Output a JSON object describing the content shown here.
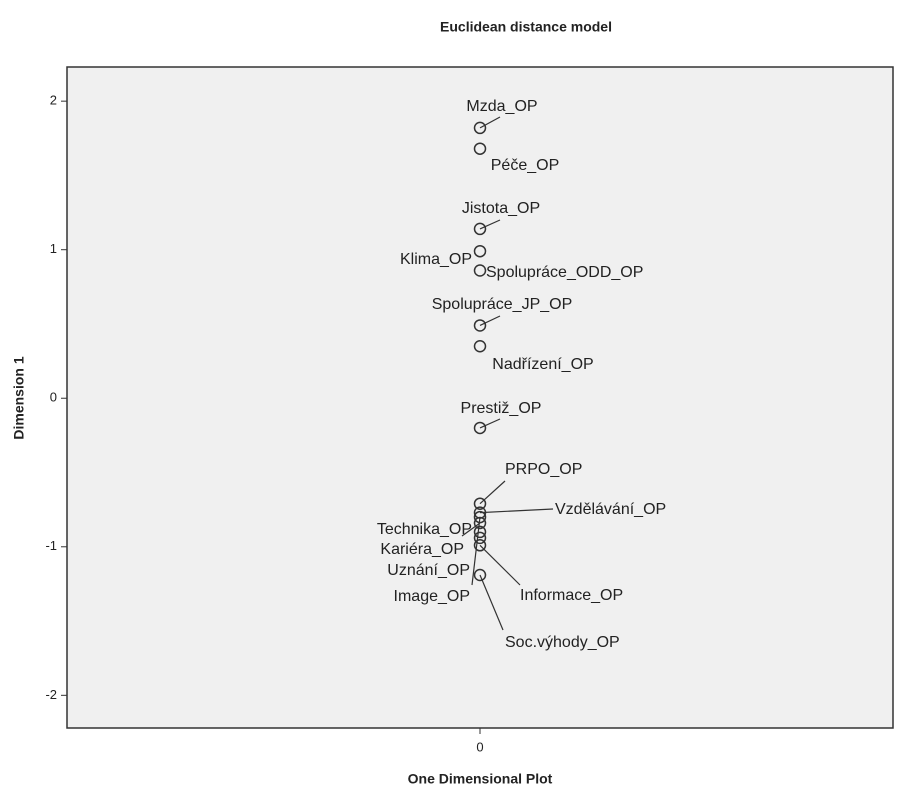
{
  "chart_data": {
    "type": "scatter",
    "title": "Euclidean distance model",
    "xlabel": "One Dimensional Plot",
    "ylabel": "Dimension 1",
    "xlim": [
      -1,
      1
    ],
    "xticks": [
      0
    ],
    "ylim": [
      -2.22,
      2.23
    ],
    "yticks": [
      -2,
      -1,
      0,
      1,
      2
    ],
    "color": "#333333",
    "points": [
      {
        "label": "Mzda_OP",
        "x": 0,
        "y": 1.82
      },
      {
        "label": "Péče_OP",
        "x": 0,
        "y": 1.68
      },
      {
        "label": "Jistota_OP",
        "x": 0,
        "y": 1.14
      },
      {
        "label": "Klima_OP",
        "x": 0,
        "y": 0.99
      },
      {
        "label": "Spolupráce_ODD_OP",
        "x": 0,
        "y": 0.86
      },
      {
        "label": "Spolupráce_JP_OP",
        "x": 0,
        "y": 0.49
      },
      {
        "label": "Nadřízení_OP",
        "x": 0,
        "y": 0.35
      },
      {
        "label": "Prestiž_OP",
        "x": 0,
        "y": -0.2
      },
      {
        "label": "PRPO_OP",
        "x": 0,
        "y": -0.71
      },
      {
        "label": "Vzdělávání_OP",
        "x": 0,
        "y": -0.77
      },
      {
        "label": "Technika_OP",
        "x": 0,
        "y": -0.84
      },
      {
        "label": "Kariéra_OP",
        "x": 0,
        "y": -0.94
      },
      {
        "label": "Uznání_OP",
        "x": 0,
        "y": -0.9
      },
      {
        "label": "Image_OP",
        "x": 0,
        "y": -0.8
      },
      {
        "label": "Informace_OP",
        "x": 0,
        "y": -0.99
      },
      {
        "label": "Soc.výhody_OP",
        "x": 0,
        "y": -1.19
      }
    ]
  }
}
